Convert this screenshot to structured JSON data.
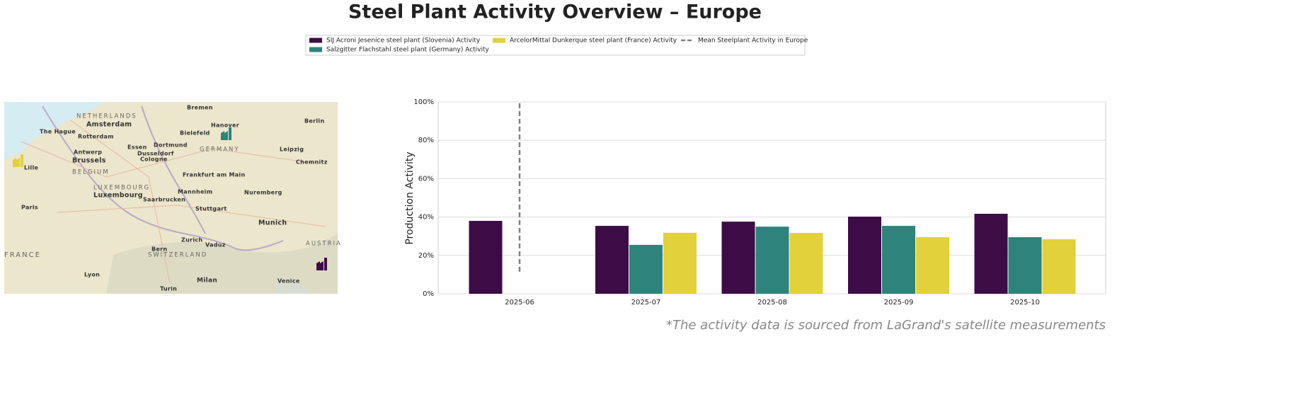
{
  "chart_data": {
    "type": "bar",
    "title": "Steel Plant Activity Overview – Europe",
    "y_label": "Production Activity",
    "footnote": "*The activity data is sourced from LaGrand's satellite measurements",
    "categories": [
      "2025-06",
      "2025-07",
      "2025-08",
      "2025-09",
      "2025-10"
    ],
    "series": [
      {
        "name": "SIJ Acroni Jesenice steel plant (Slovenia) Activity",
        "color": "#3d0c47",
        "values": [
          38,
          35.4,
          37.6,
          40.2,
          41.7
        ]
      },
      {
        "name": "Salzgitter Flachstahl steel plant (Germany) Activity",
        "color": "#2e837c",
        "values": [
          null,
          25.5,
          35,
          35.4,
          29.5
        ]
      },
      {
        "name": "ArcelorMittal Dunkerque steel plant (France) Activity",
        "color": "#e2d13a",
        "values": [
          null,
          31.8,
          31.7,
          29.5,
          28.4
        ]
      }
    ],
    "mean_line": {
      "name": "Mean Steelplant Activity in Europe",
      "color": "#808080",
      "values": [
        11.5,
        100
      ]
    },
    "ylim": [
      0,
      100
    ],
    "yticks": [
      {
        "value": 0,
        "label": "0%"
      },
      {
        "value": 20,
        "label": "20%"
      },
      {
        "value": 40,
        "label": "40%"
      },
      {
        "value": 60,
        "label": "60%"
      },
      {
        "value": 80,
        "label": "80%"
      },
      {
        "value": 100,
        "label": "100%"
      }
    ],
    "grid": true
  },
  "map": {
    "labels": [
      "Bremen",
      "NETHERLANDS",
      "Amsterdam",
      "Berlin",
      "The Hague",
      "Rotterdam",
      "Hanover",
      "Bielefeld",
      "Antwerp",
      "Essen",
      "Dortmund",
      "GERMANY",
      "Leipzig",
      "Dusseldorf",
      "Cologne",
      "Brussels",
      "Lille",
      "BELGIUM",
      "Frankfurt am Main",
      "LUXEMBOURG",
      "Luxembourg",
      "Mannheim",
      "Nuremberg",
      "Paris",
      "Saarbrucken",
      "Stuttgart",
      "Munich",
      "Zurich",
      "Vaduz",
      "Bern",
      "SWITZERLAND",
      "FRANCE",
      "AUSTRIA",
      "Lyon",
      "Milan",
      "Turin",
      "Venice",
      "Chemnitz"
    ]
  }
}
